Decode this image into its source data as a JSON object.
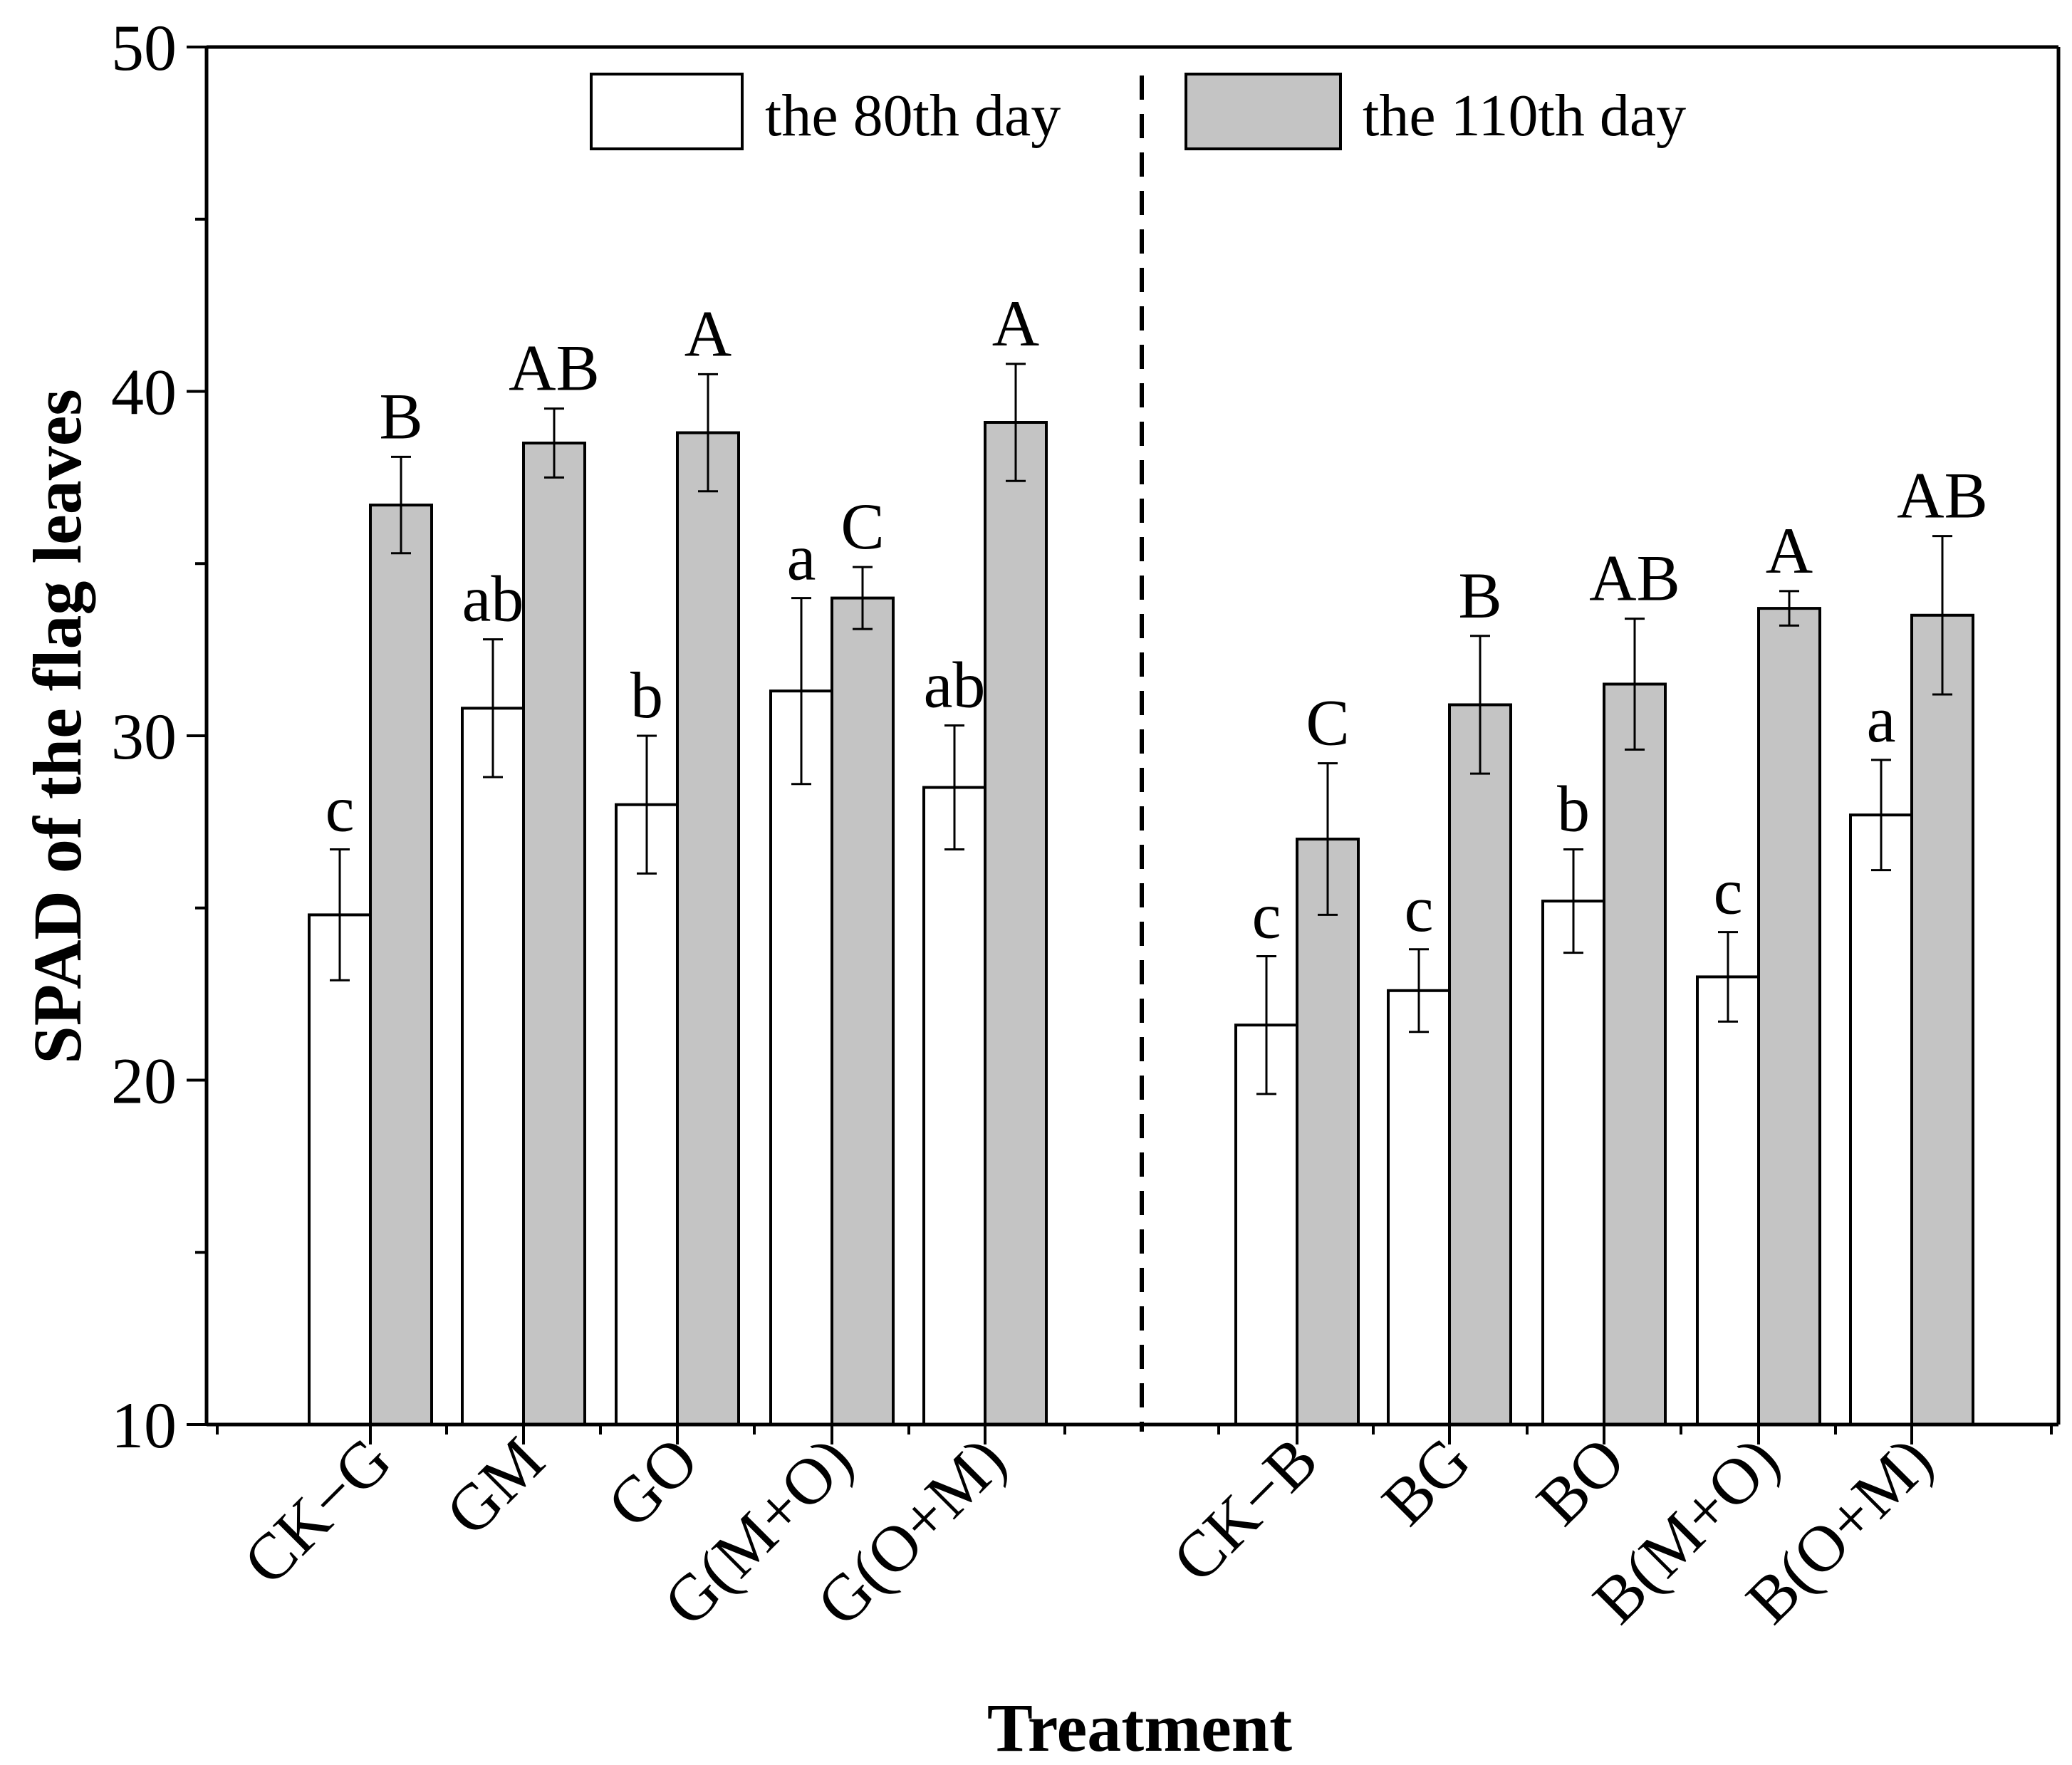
{
  "chart_data": {
    "type": "bar",
    "xlabel": "Treatment",
    "ylabel": "SPAD of the flag leaves",
    "ylim": [
      10,
      50
    ],
    "yticks": [
      10,
      20,
      30,
      40,
      50
    ],
    "grid": false,
    "legend_position": "top",
    "groups": [
      {
        "categories": [
          "CK−G",
          "GM",
          "GO",
          "G(M+O)",
          "G(O+M)"
        ]
      },
      {
        "categories": [
          "CK−B",
          "BG",
          "BO",
          "B(M+O)",
          "B(O+M)"
        ]
      }
    ],
    "series": [
      {
        "name": "the 80th day",
        "color": "#ffffff",
        "values": [
          24.8,
          30.8,
          28.0,
          31.3,
          28.5,
          21.6,
          22.6,
          25.2,
          23.0,
          27.7
        ],
        "errors": [
          1.9,
          2.0,
          2.0,
          2.7,
          1.8,
          2.0,
          1.2,
          1.5,
          1.3,
          1.6
        ],
        "labels": [
          "c",
          "ab",
          "b",
          "a",
          "ab",
          "c",
          "c",
          "b",
          "c",
          "a"
        ]
      },
      {
        "name": "the 110th day",
        "color": "#c4c4c4",
        "values": [
          36.7,
          38.5,
          38.8,
          34.0,
          39.1,
          27.0,
          30.9,
          31.5,
          33.7,
          33.5
        ],
        "errors": [
          1.4,
          1.0,
          1.7,
          0.9,
          1.7,
          2.2,
          2.0,
          1.9,
          0.5,
          2.3
        ],
        "labels": [
          "B",
          "AB",
          "A",
          "C",
          "A",
          "C",
          "B",
          "AB",
          "A",
          "AB"
        ]
      }
    ]
  }
}
